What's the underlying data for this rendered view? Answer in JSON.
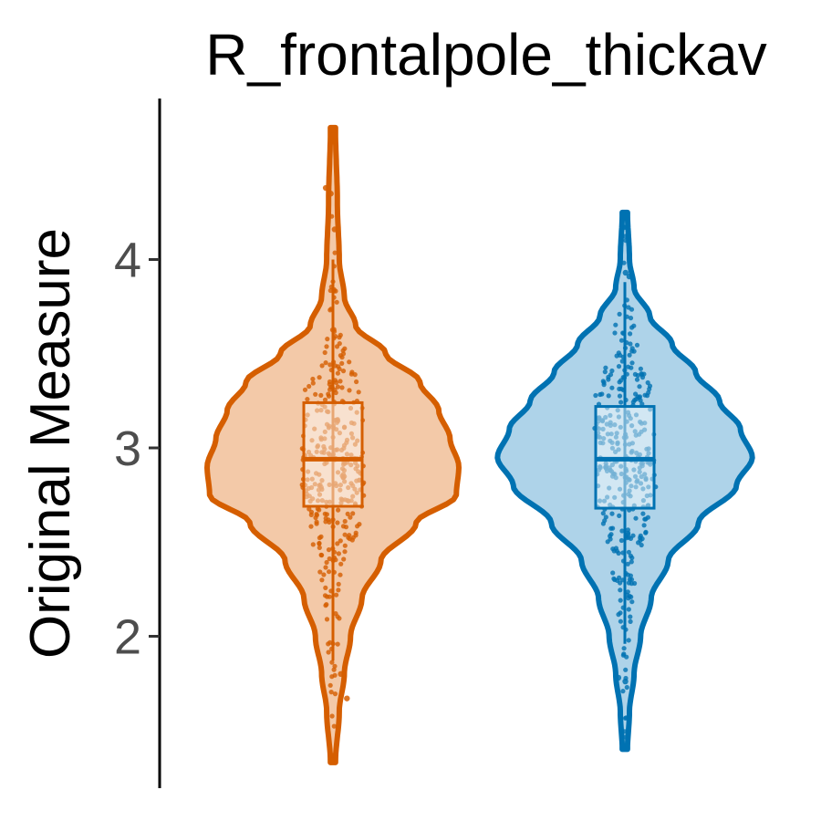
{
  "chart_data": {
    "type": "violin",
    "title": "R_frontalpole_thickav",
    "xlabel": "",
    "ylabel": "Original Measure",
    "ylim": [
      1.3,
      4.8
    ],
    "yticks": [
      2,
      3,
      4
    ],
    "ytick_labels": [
      "2",
      "3",
      "4"
    ],
    "grid": false,
    "legend": "none",
    "series": [
      {
        "color": "#D55E00",
        "fill": "#F3C9A8",
        "min": 1.33,
        "max": 4.7,
        "box": {
          "q1": 2.69,
          "median": 2.94,
          "q3": 3.24,
          "whisker_low": 1.87,
          "whisker_high": 4.0
        },
        "density": [
          [
            1.33,
            0.02
          ],
          [
            1.6,
            0.05
          ],
          [
            1.8,
            0.09
          ],
          [
            2.0,
            0.14
          ],
          [
            2.2,
            0.23
          ],
          [
            2.4,
            0.38
          ],
          [
            2.6,
            0.66
          ],
          [
            2.75,
            0.98
          ],
          [
            2.9,
            1.0
          ],
          [
            3.05,
            0.93
          ],
          [
            3.2,
            0.84
          ],
          [
            3.35,
            0.69
          ],
          [
            3.5,
            0.42
          ],
          [
            3.65,
            0.18
          ],
          [
            3.8,
            0.09
          ],
          [
            4.0,
            0.05
          ],
          [
            4.3,
            0.035
          ],
          [
            4.7,
            0.02
          ]
        ],
        "outliers": [
          4.38,
          4.35,
          4.16,
          1.8,
          1.67
        ]
      },
      {
        "color": "#0072B2",
        "fill": "#AED3E9",
        "min": 1.4,
        "max": 4.25,
        "box": {
          "q1": 2.68,
          "median": 2.94,
          "q3": 3.22,
          "whisker_low": 1.96,
          "whisker_high": 3.88
        },
        "density": [
          [
            1.4,
            0.02
          ],
          [
            1.6,
            0.035
          ],
          [
            1.8,
            0.07
          ],
          [
            2.0,
            0.12
          ],
          [
            2.2,
            0.2
          ],
          [
            2.4,
            0.33
          ],
          [
            2.6,
            0.56
          ],
          [
            2.8,
            0.85
          ],
          [
            2.95,
            0.97
          ],
          [
            3.1,
            0.88
          ],
          [
            3.25,
            0.72
          ],
          [
            3.4,
            0.54
          ],
          [
            3.55,
            0.36
          ],
          [
            3.7,
            0.19
          ],
          [
            3.85,
            0.07
          ],
          [
            4.0,
            0.035
          ],
          [
            4.25,
            0.02
          ]
        ],
        "outliers": [
          3.93,
          3.91,
          1.78,
          1.76
        ]
      }
    ]
  }
}
